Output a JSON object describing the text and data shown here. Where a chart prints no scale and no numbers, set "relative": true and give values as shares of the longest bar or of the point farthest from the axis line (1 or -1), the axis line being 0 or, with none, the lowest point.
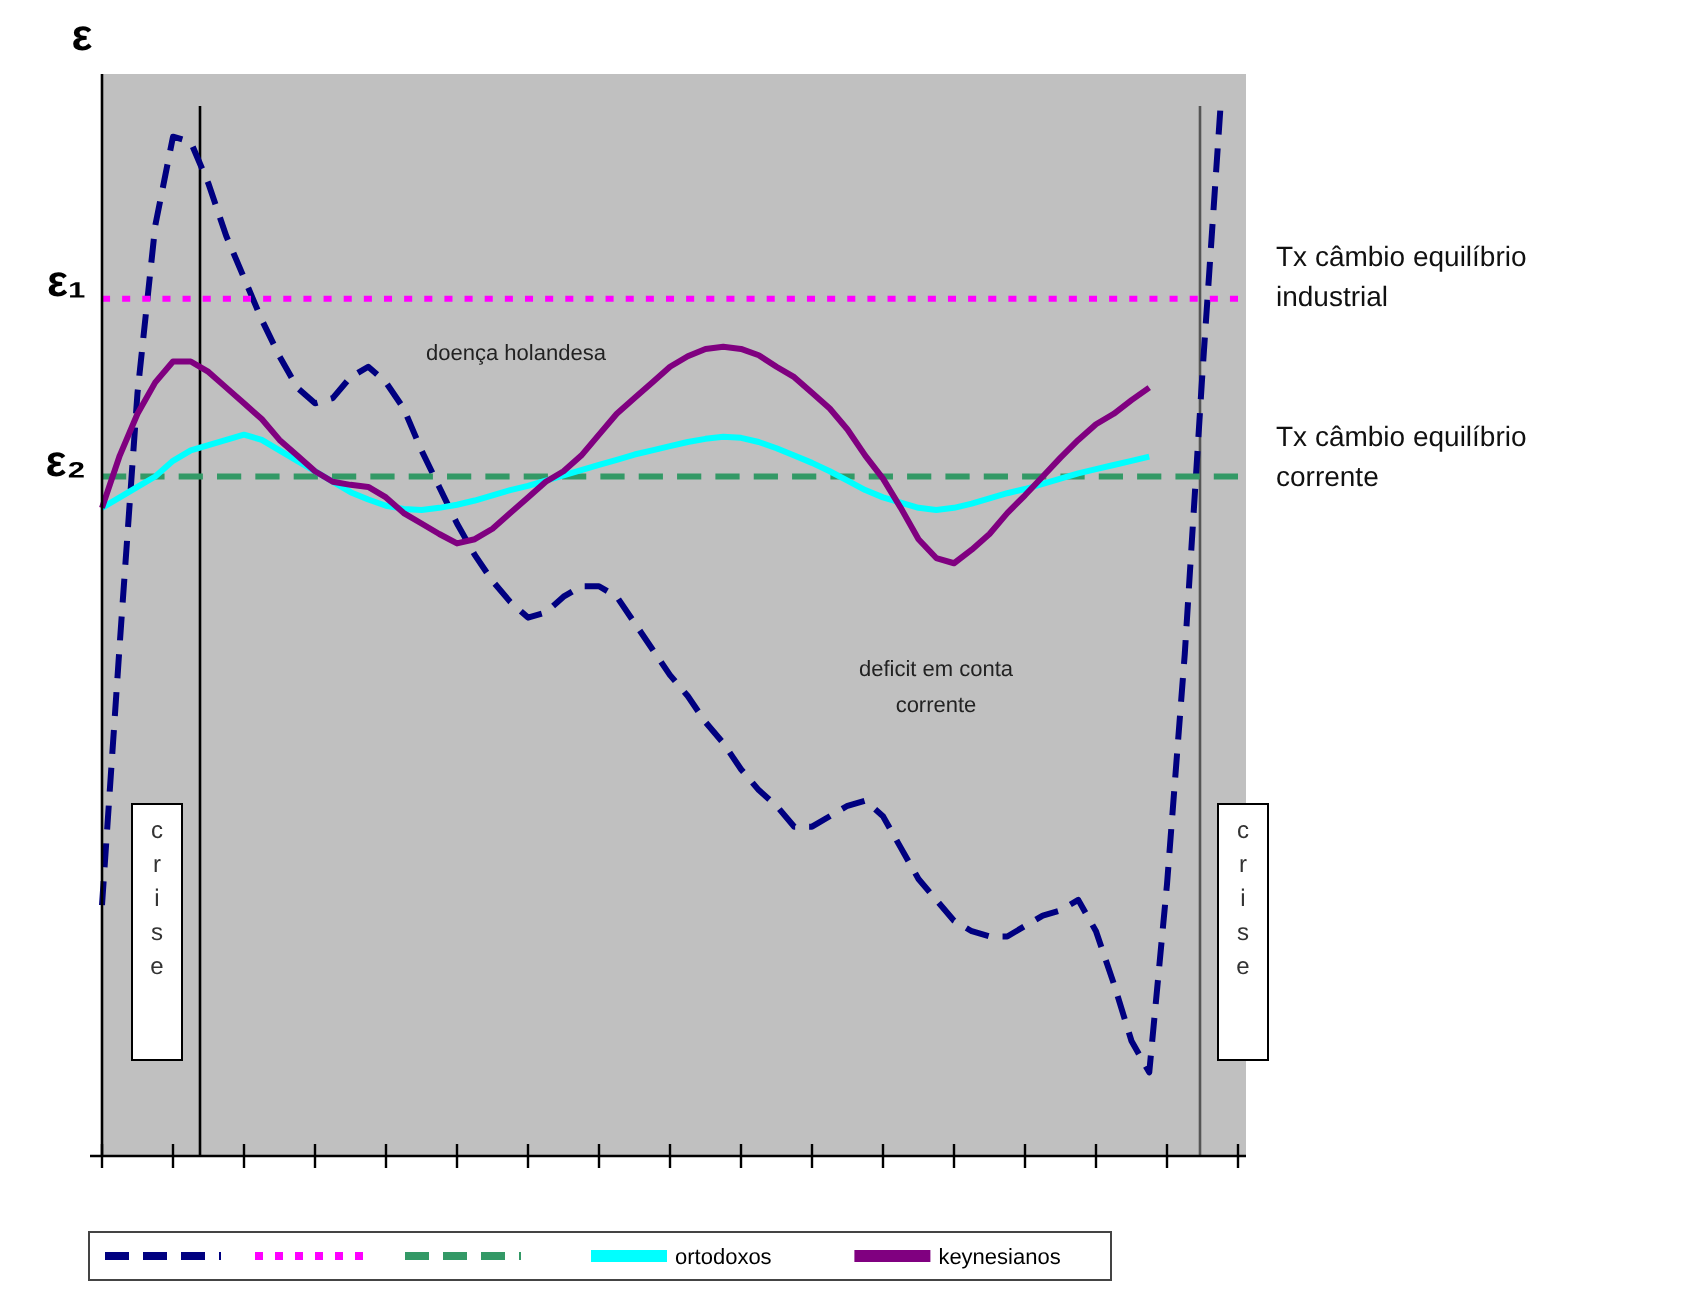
{
  "chart_data": {
    "type": "line",
    "relative": true,
    "ylabel": "ε",
    "categories": [
      null,
      null,
      null,
      null,
      null,
      null,
      null,
      null,
      null,
      null,
      null,
      null,
      null,
      null,
      null,
      null,
      null,
      null,
      null,
      null,
      null,
      null,
      null,
      null,
      null,
      null,
      null,
      null,
      null,
      null,
      null,
      null,
      null,
      null,
      null,
      null,
      null,
      null,
      null,
      null,
      null,
      null,
      null,
      null,
      null,
      null,
      null,
      null,
      null,
      null,
      null,
      null,
      null,
      null,
      null,
      null,
      null,
      null,
      null,
      null,
      null,
      null,
      null,
      null,
      null
    ],
    "grid": false,
    "legend": "bottom",
    "marker": "none",
    "series": [
      {
        "color": "#000080",
        "line_style": "dashed",
        "values": [
          0.24,
          0.49,
          0.73,
          0.89,
          0.975,
          0.97,
          0.93,
          0.88,
          0.84,
          0.8,
          0.765,
          0.735,
          0.72,
          0.725,
          0.745,
          0.755,
          0.74,
          0.715,
          0.675,
          0.64,
          0.605,
          0.575,
          0.55,
          0.53,
          0.515,
          0.52,
          0.535,
          0.545,
          0.545,
          0.535,
          0.51,
          0.485,
          0.46,
          0.44,
          0.415,
          0.395,
          0.37,
          0.35,
          0.335,
          0.315,
          0.315,
          0.325,
          0.335,
          0.34,
          0.325,
          0.295,
          0.265,
          0.245,
          0.225,
          0.215,
          0.21,
          0.21,
          0.22,
          0.23,
          0.235,
          0.245,
          0.215,
          0.165,
          0.11,
          0.08,
          0.26,
          0.48,
          0.75,
          1,
          null
        ]
      },
      {
        "color": "#ff00ff",
        "line_style": "dotted",
        "values": [
          0.82,
          0.82,
          0.82,
          0.82,
          0.82,
          0.82,
          0.82,
          0.82,
          0.82,
          0.82,
          0.82,
          0.82,
          0.82,
          0.82,
          0.82,
          0.82,
          0.82,
          0.82,
          0.82,
          0.82,
          0.82,
          0.82,
          0.82,
          0.82,
          0.82,
          0.82,
          0.82,
          0.82,
          0.82,
          0.82,
          0.82,
          0.82,
          0.82,
          0.82,
          0.82,
          0.82,
          0.82,
          0.82,
          0.82,
          0.82,
          0.82,
          0.82,
          0.82,
          0.82,
          0.82,
          0.82,
          0.82,
          0.82,
          0.82,
          0.82,
          0.82,
          0.82,
          0.82,
          0.82,
          0.82,
          0.82,
          0.82,
          0.82,
          0.82,
          0.82,
          0.82,
          0.82,
          0.82,
          0.82,
          0.82
        ]
      },
      {
        "color": "#339966",
        "line_style": "dashed",
        "values": [
          0.65,
          0.65,
          0.65,
          0.65,
          0.65,
          0.65,
          0.65,
          0.65,
          0.65,
          0.65,
          0.65,
          0.65,
          0.65,
          0.65,
          0.65,
          0.65,
          0.65,
          0.65,
          0.65,
          0.65,
          0.65,
          0.65,
          0.65,
          0.65,
          0.65,
          0.65,
          0.65,
          0.65,
          0.65,
          0.65,
          0.65,
          0.65,
          0.65,
          0.65,
          0.65,
          0.65,
          0.65,
          0.65,
          0.65,
          0.65,
          0.65,
          0.65,
          0.65,
          0.65,
          0.65,
          0.65,
          0.65,
          0.65,
          0.65,
          0.65,
          0.65,
          0.65,
          0.65,
          0.65,
          0.65,
          0.65,
          0.65,
          0.65,
          0.65,
          0.65,
          0.65,
          0.65,
          0.65,
          0.65,
          0.65
        ]
      },
      {
        "name": "ortodoxos",
        "color": "#00ffff",
        "line_style": "solid",
        "values": [
          0.62,
          0.63,
          0.64,
          0.65,
          0.665,
          0.675,
          0.68,
          0.685,
          0.69,
          0.685,
          0.675,
          0.665,
          0.655,
          0.645,
          0.635,
          0.628,
          0.622,
          0.619,
          0.618,
          0.62,
          0.623,
          0.627,
          0.632,
          0.637,
          0.641,
          0.646,
          0.651,
          0.656,
          0.661,
          0.666,
          0.671,
          0.675,
          0.679,
          0.683,
          0.686,
          0.688,
          0.687,
          0.683,
          0.677,
          0.67,
          0.663,
          0.655,
          0.646,
          0.637,
          0.63,
          0.625,
          0.62,
          0.618,
          0.62,
          0.624,
          0.629,
          0.634,
          0.638,
          0.643,
          0.648,
          0.653,
          0.657,
          0.661,
          0.665,
          0.669,
          null,
          null,
          null,
          null,
          null
        ]
      },
      {
        "name": "keynesianos",
        "color": "#800080",
        "line_style": "solid",
        "values": [
          0.62,
          0.67,
          0.71,
          0.74,
          0.76,
          0.76,
          0.75,
          0.735,
          0.72,
          0.705,
          0.685,
          0.67,
          0.655,
          0.645,
          0.642,
          0.64,
          0.63,
          0.615,
          0.605,
          0.595,
          0.586,
          0.59,
          0.6,
          0.615,
          0.63,
          0.645,
          0.655,
          0.67,
          0.69,
          0.71,
          0.725,
          0.74,
          0.755,
          0.765,
          0.772,
          0.774,
          0.772,
          0.766,
          0.755,
          0.745,
          0.73,
          0.715,
          0.695,
          0.67,
          0.648,
          0.62,
          0.59,
          0.572,
          0.567,
          0.58,
          0.595,
          0.615,
          0.632,
          0.65,
          0.668,
          0.685,
          0.7,
          0.71,
          0.723,
          0.735,
          null,
          null,
          null,
          null,
          null
        ]
      }
    ],
    "annotations": [
      "ε₁",
      "ε₂",
      "Tx câmbio equilíbrio industrial",
      "Tx câmbio equilíbrio corrente",
      "doença holandesa",
      "deficit em conta corrente",
      "crise",
      "crise"
    ]
  }
}
